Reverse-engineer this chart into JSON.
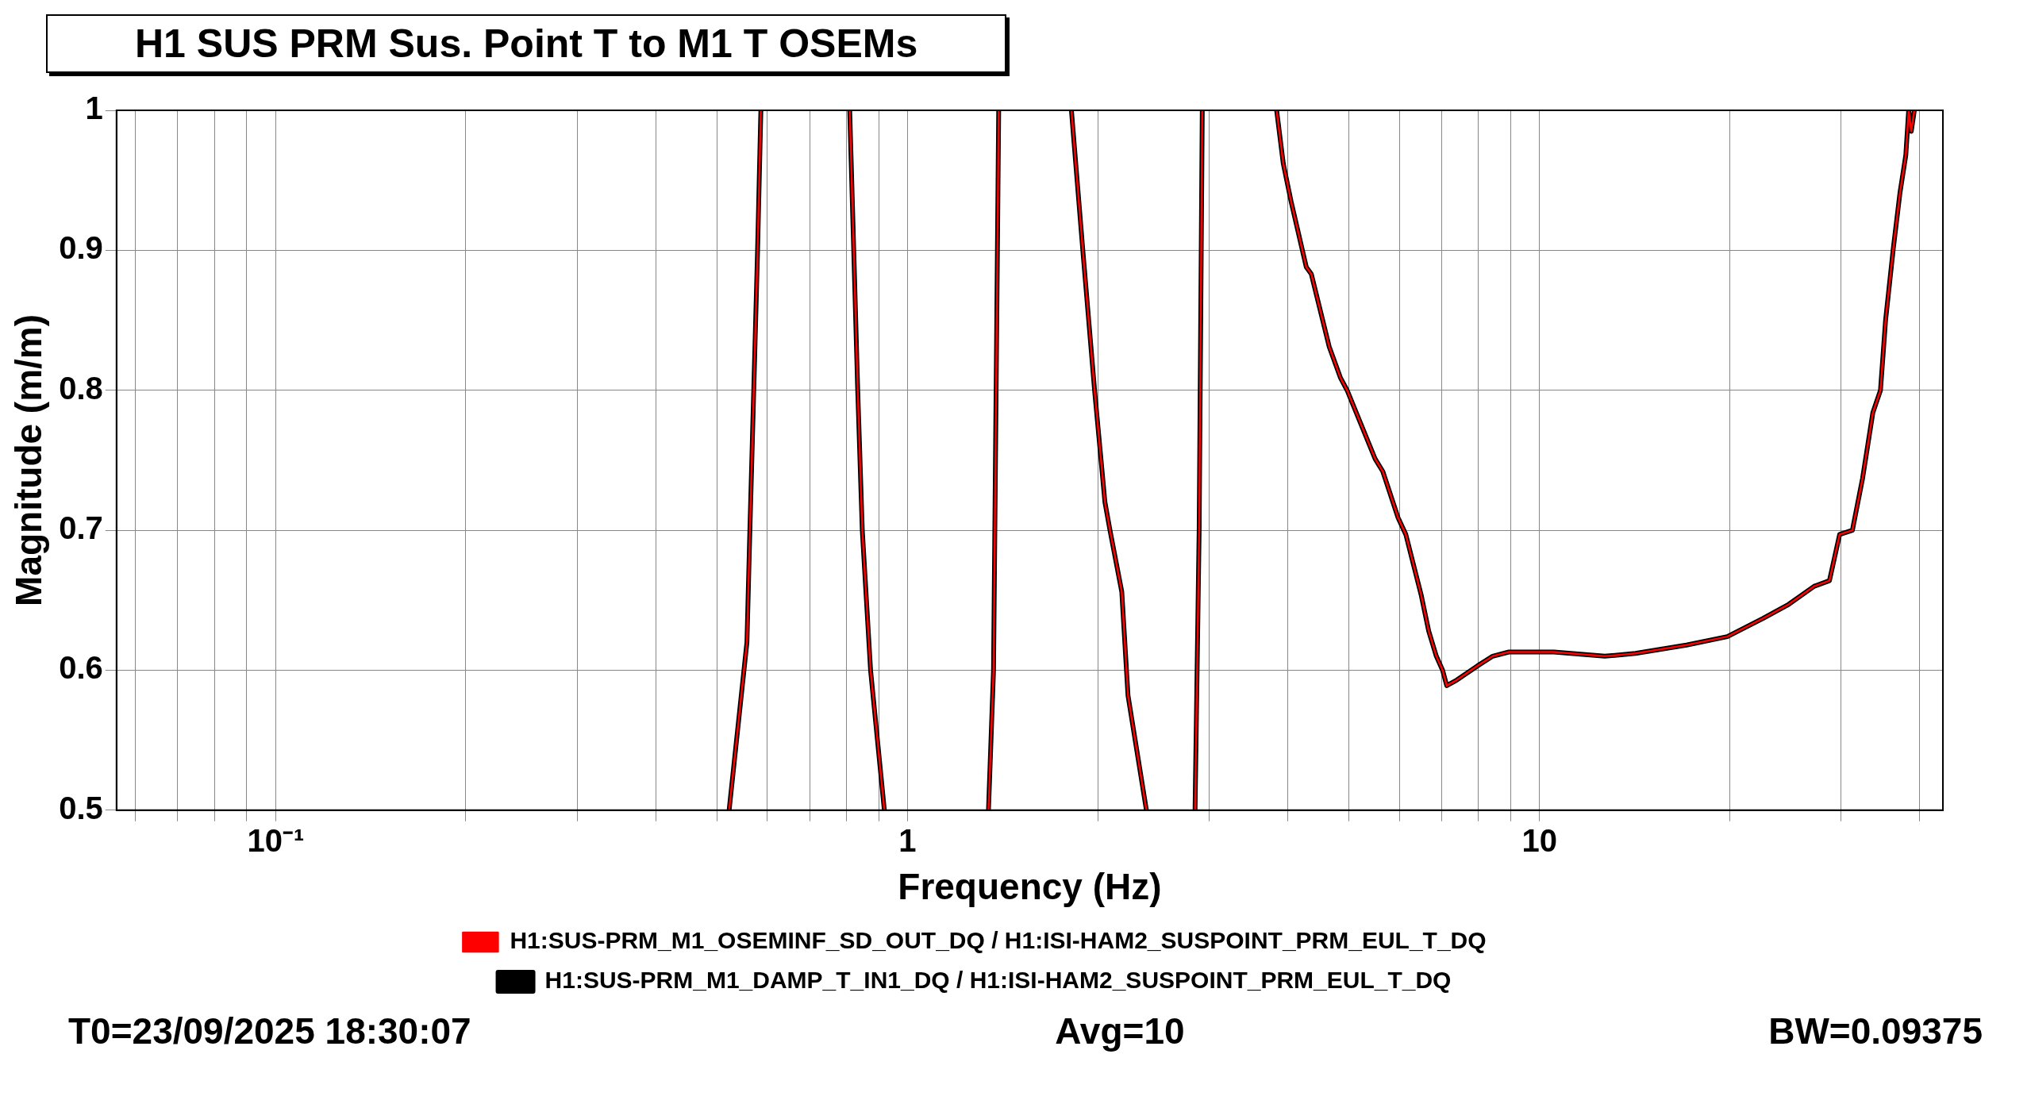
{
  "chart_data": {
    "type": "line",
    "title": "H1 SUS PRM Sus. Point T to M1 T OSEMs",
    "xlabel": "Frequency (Hz)",
    "ylabel": "Magnitude (m/m)",
    "log": "x",
    "grid": true,
    "legend": "bottom",
    "marker": "none",
    "line_style": "solid",
    "xlim": [
      0.056,
      43.5
    ],
    "ylim": [
      0.5,
      1
    ],
    "xticks": [
      {
        "value": 0.06,
        "label": null
      },
      {
        "value": 0.07,
        "label": null
      },
      {
        "value": 0.08,
        "label": null
      },
      {
        "value": 0.09,
        "label": null
      },
      {
        "value": 0.1,
        "label": "10⁻¹"
      },
      {
        "value": 0.2,
        "label": null
      },
      {
        "value": 0.3,
        "label": null
      },
      {
        "value": 0.4,
        "label": null
      },
      {
        "value": 0.5,
        "label": null
      },
      {
        "value": 0.6,
        "label": null
      },
      {
        "value": 0.7,
        "label": null
      },
      {
        "value": 0.8,
        "label": null
      },
      {
        "value": 0.9,
        "label": null
      },
      {
        "value": 1,
        "label": "1"
      },
      {
        "value": 2,
        "label": null
      },
      {
        "value": 3,
        "label": null
      },
      {
        "value": 4,
        "label": null
      },
      {
        "value": 5,
        "label": null
      },
      {
        "value": 6,
        "label": null
      },
      {
        "value": 7,
        "label": null
      },
      {
        "value": 8,
        "label": null
      },
      {
        "value": 9,
        "label": null
      },
      {
        "value": 10,
        "label": "10"
      },
      {
        "value": 20,
        "label": null
      },
      {
        "value": 30,
        "label": null
      },
      {
        "value": 40,
        "label": null
      }
    ],
    "yticks": [
      0.5,
      0.6,
      0.7,
      0.8,
      0.9,
      1
    ],
    "x": [
      0.522,
      0.557,
      0.563,
      0.571,
      0.579,
      0.586,
      0.7,
      0.81,
      0.822,
      0.834,
      0.848,
      0.874,
      0.919,
      1.1,
      1.343,
      1.368,
      1.381,
      1.394,
      1.6,
      1.817,
      1.894,
      1.977,
      2.053,
      2.091,
      2.183,
      2.233,
      2.388,
      2.6,
      2.851,
      2.894,
      2.927,
      3.3,
      3.838,
      3.932,
      4.045,
      4.276,
      4.355,
      4.649,
      4.842,
      4.962,
      5.495,
      5.651,
      5.974,
      6.145,
      6.497,
      6.68,
      6.868,
      7.027,
      7.133,
      7.4,
      7.974,
      8.433,
      8.946,
      10.54,
      12.69,
      14.19,
      17.09,
      19.83,
      22.59,
      24.79,
      27.22,
      28.77,
      29.86,
      31.28,
      32.46,
      33.7,
      34.65,
      35.3,
      36.3,
      37.2,
      38.0,
      38.4,
      38.76,
      39.2
    ],
    "series": [
      {
        "name": "H1:SUS-PRM_M1_OSEMINF_SD_OUT_DQ / H1:ISI-HAM2_SUSPOINT_PRM_EUL_T_DQ",
        "color": "#ff0000",
        "values": [
          0.5,
          0.62,
          0.7,
          0.8,
          0.9,
          1,
          null,
          1,
          0.9,
          0.8,
          0.7,
          0.6,
          0.5,
          null,
          0.5,
          0.6,
          0.8,
          1,
          null,
          1,
          0.9,
          0.8,
          0.72,
          0.7,
          0.656,
          0.582,
          0.5,
          null,
          0.5,
          0.7,
          1,
          null,
          1,
          0.962,
          0.935,
          0.888,
          0.883,
          0.831,
          0.809,
          0.8,
          0.751,
          0.742,
          0.709,
          0.697,
          0.654,
          0.628,
          0.61,
          0.6,
          0.589,
          0.593,
          0.603,
          0.61,
          0.613,
          0.613,
          0.61,
          0.612,
          0.618,
          0.624,
          0.637,
          0.647,
          0.66,
          0.664,
          0.697,
          0.7,
          0.737,
          0.784,
          0.8,
          0.85,
          0.901,
          0.941,
          0.968,
          1,
          0.985,
          1
        ]
      },
      {
        "name": "H1:SUS-PRM_M1_DAMP_T_IN1_DQ / H1:ISI-HAM2_SUSPOINT_PRM_EUL_T_DQ",
        "color": "#000000",
        "values": [
          0.5,
          0.62,
          0.7,
          0.8,
          0.9,
          1,
          null,
          1,
          0.9,
          0.8,
          0.7,
          0.6,
          0.5,
          null,
          0.5,
          0.6,
          0.8,
          1,
          null,
          1,
          0.9,
          0.8,
          0.72,
          0.7,
          0.656,
          0.582,
          0.5,
          null,
          0.5,
          0.7,
          1,
          null,
          1,
          0.962,
          0.935,
          0.888,
          0.883,
          0.831,
          0.809,
          0.8,
          0.751,
          0.742,
          0.709,
          0.697,
          0.654,
          0.628,
          0.61,
          0.6,
          0.589,
          0.593,
          0.603,
          0.61,
          0.613,
          0.613,
          0.61,
          0.612,
          0.618,
          0.624,
          0.637,
          0.647,
          0.66,
          0.664,
          0.697,
          0.7,
          0.737,
          0.784,
          0.8,
          0.85,
          0.901,
          0.941,
          0.968,
          1,
          0.985,
          1
        ]
      }
    ],
    "annotations": [
      "T0=23/09/2025 18:30:07",
      "Avg=10",
      "BW=0.09375"
    ]
  }
}
